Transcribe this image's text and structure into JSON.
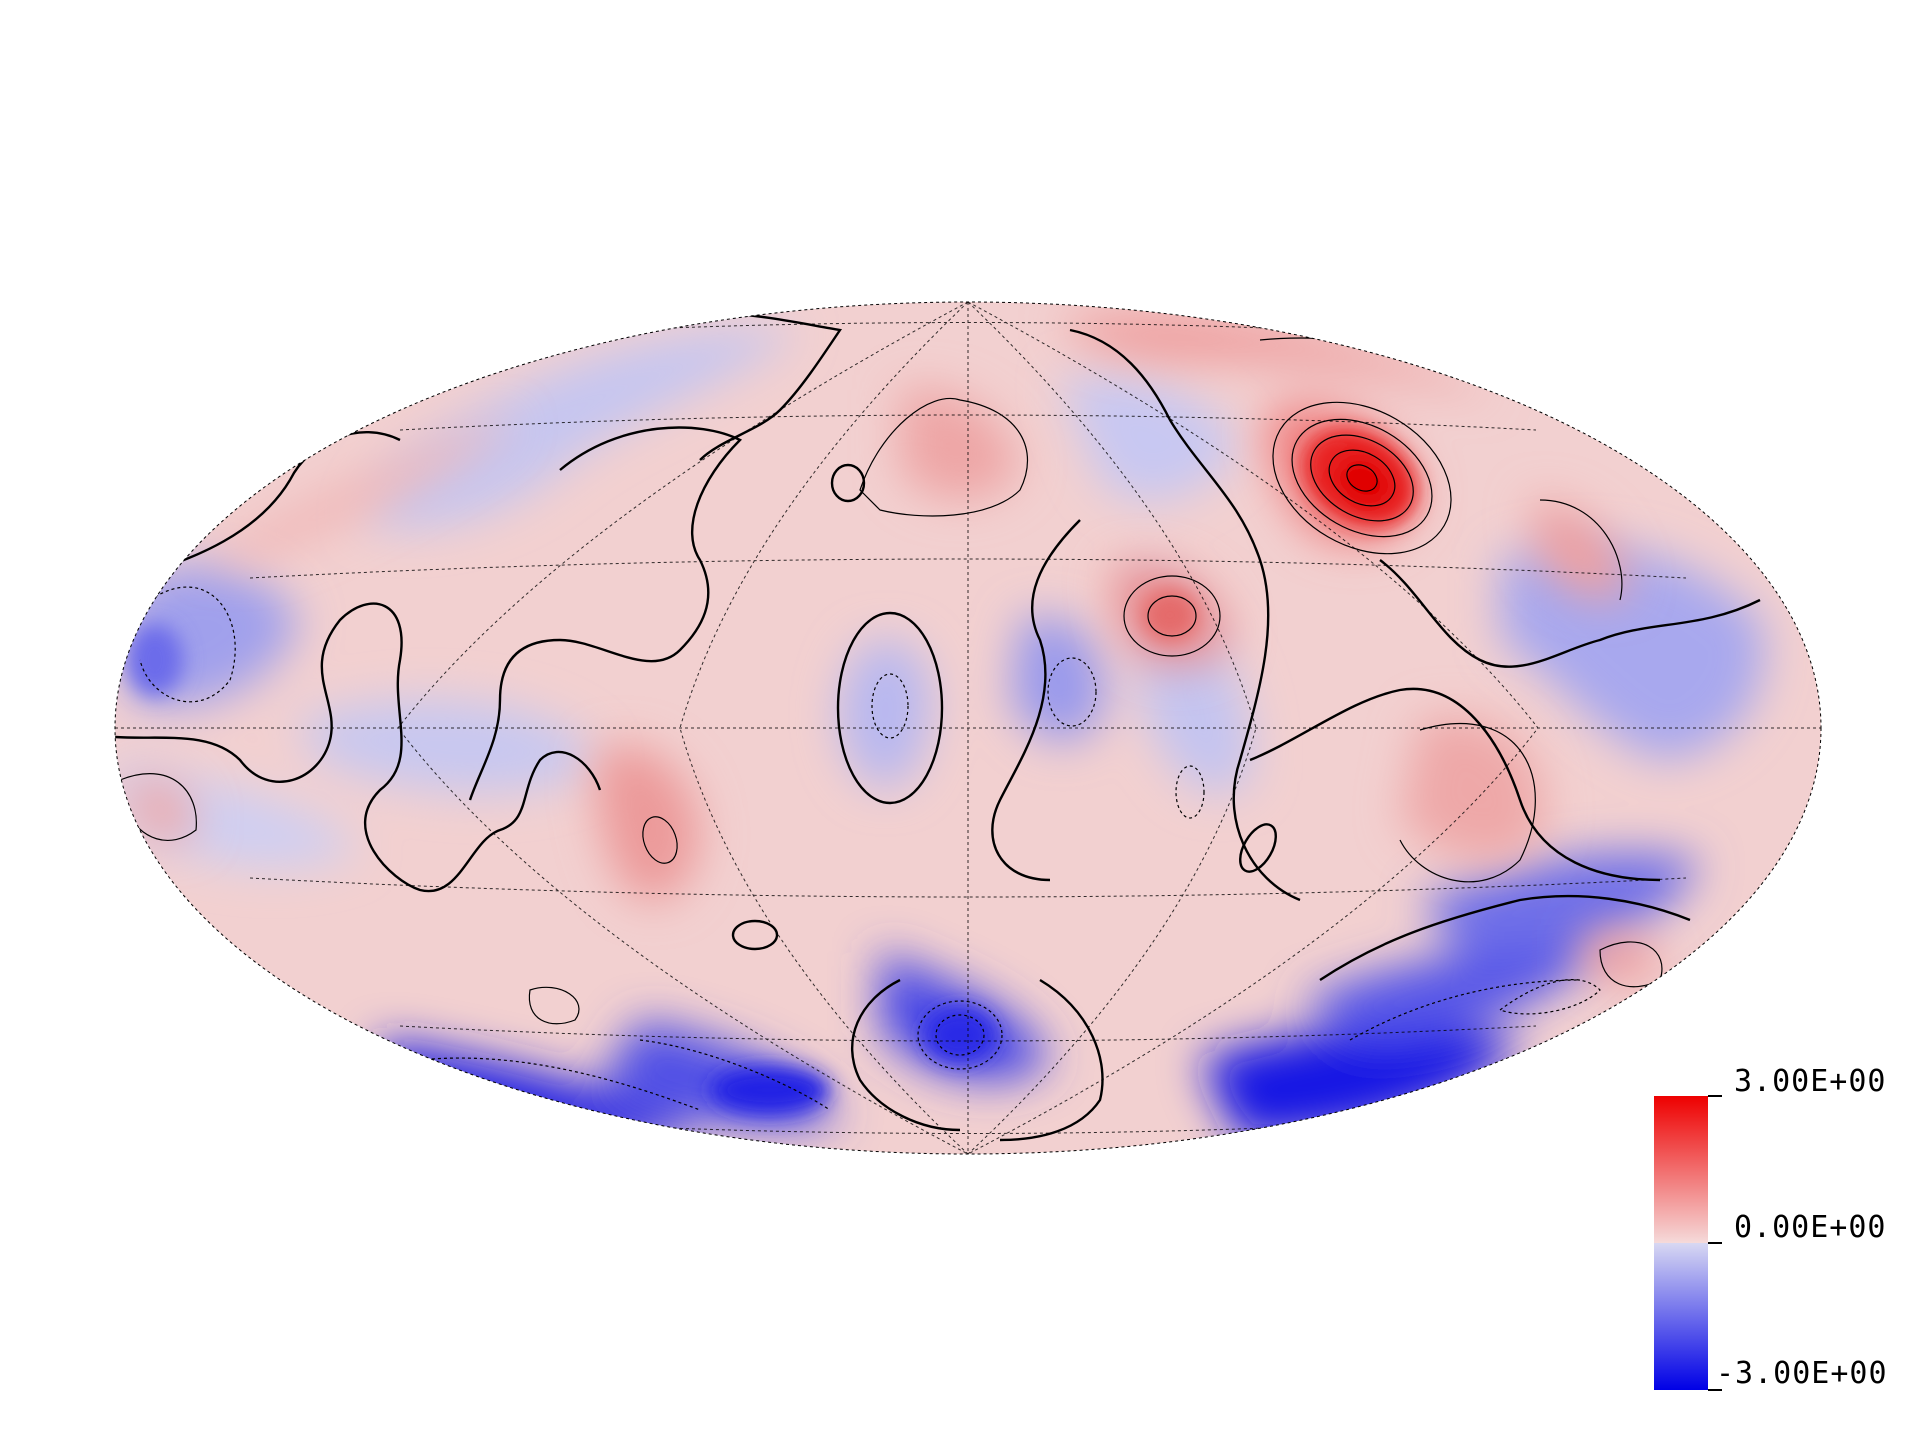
{
  "projection": "Mollweide",
  "colorbar": {
    "max_label": "3.00E+00",
    "mid_label": "0.00E+00",
    "min_label": "-3.00E+00",
    "min_value": -3,
    "mid_value": 0,
    "max_value": 3,
    "colors": {
      "max": "#ee0000",
      "mid_high": "#f5dada",
      "mid_low": "#d8d8f2",
      "min": "#0000e6"
    }
  },
  "graticule": {
    "style": "dotted",
    "color": "#000000"
  },
  "contours": {
    "zero_line": "solid-thick",
    "positive": "solid-thin",
    "negative": "dotted-thin"
  }
}
